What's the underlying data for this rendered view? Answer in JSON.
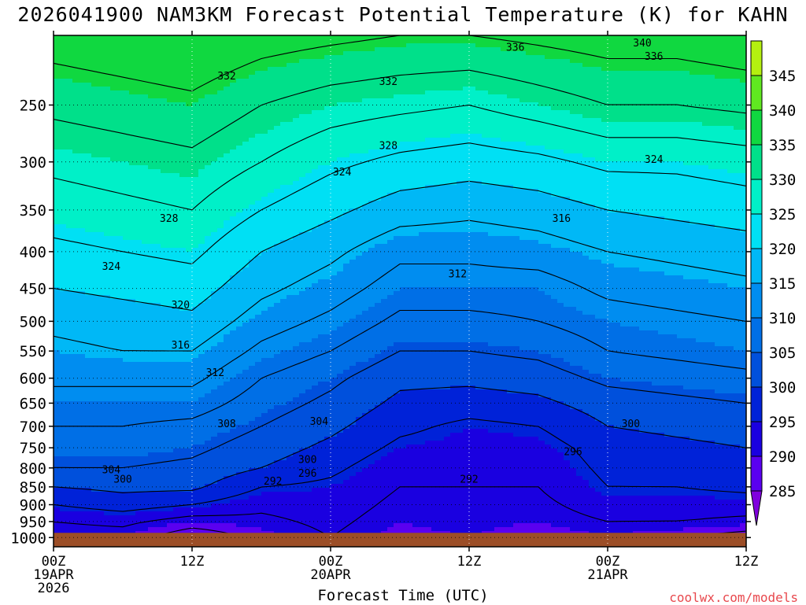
{
  "title": "2026041900 NAM3KM Forecast Potential Temperature (K) for KAHN",
  "xlabel": "Forecast Time (UTC)",
  "credit": "coolwx.com/models",
  "colors": {
    "ground": "#9c4e27",
    "bands": [
      "#8000dd",
      "#5a00f0",
      "#1a00e0",
      "#0022d8",
      "#0050dc",
      "#006fe6",
      "#008df0",
      "#00b8f6",
      "#00e0f4",
      "#00f0c8",
      "#00e08a",
      "#10d840",
      "#60e820",
      "#b4f010",
      "#f0f000"
    ]
  },
  "chart_data": {
    "type": "heatmap",
    "title": "2026041900 NAM3KM Forecast Potential Temperature (K) for KAHN",
    "xlabel": "Forecast Time (UTC)",
    "ylabel": "",
    "x_ticks": [
      {
        "hour": 0,
        "lines": [
          "00Z",
          "19APR",
          "2026"
        ]
      },
      {
        "hour": 12,
        "lines": [
          "12Z"
        ]
      },
      {
        "hour": 24,
        "lines": [
          "00Z",
          "20APR"
        ]
      },
      {
        "hour": 36,
        "lines": [
          "12Z"
        ]
      },
      {
        "hour": 48,
        "lines": [
          "00Z",
          "21APR"
        ]
      },
      {
        "hour": 60,
        "lines": [
          "12Z"
        ]
      }
    ],
    "xlim": [
      0,
      60
    ],
    "y_ticks": [
      250,
      300,
      350,
      400,
      450,
      500,
      550,
      600,
      650,
      700,
      750,
      800,
      850,
      900,
      950,
      1000
    ],
    "ylim_hpa": [
      1030,
      200
    ],
    "colorbar_levels": [
      285,
      290,
      295,
      300,
      305,
      310,
      315,
      320,
      325,
      330,
      335,
      340,
      345
    ],
    "colorbar_range": [
      280,
      350
    ],
    "profile_hours": [
      0,
      6,
      12,
      18,
      24,
      30,
      36,
      42,
      48,
      54,
      60
    ],
    "profile_pressures": [
      1000,
      950,
      900,
      850,
      800,
      750,
      700,
      650,
      600,
      550,
      500,
      450,
      400,
      350,
      300,
      250,
      200
    ],
    "theta": [
      [
        290,
        292,
        296,
        300,
        304,
        306,
        308,
        310,
        313,
        315,
        317,
        320,
        323,
        326,
        329,
        333,
        338
      ],
      [
        290,
        293,
        298,
        301,
        304,
        306,
        308,
        310,
        313,
        316,
        318,
        321,
        324,
        327,
        330,
        334,
        339
      ],
      [
        285,
        290,
        296,
        301,
        303,
        305,
        307,
        310,
        313,
        316,
        319,
        322,
        325,
        328,
        331,
        335,
        340
      ],
      [
        289,
        291,
        293,
        296,
        300,
        302,
        304,
        306,
        308,
        311,
        314,
        317,
        320,
        324,
        328,
        332,
        338
      ],
      [
        292,
        293,
        294,
        295,
        297,
        299,
        301,
        303,
        305,
        308,
        311,
        314,
        317,
        321,
        325,
        330,
        337
      ],
      [
        289,
        290,
        291,
        292,
        293,
        295,
        297,
        299,
        301,
        304,
        307,
        310,
        313,
        318,
        323,
        329,
        336
      ],
      [
        290,
        291,
        291,
        292,
        293,
        294,
        295,
        298,
        301,
        304,
        307,
        310,
        313,
        317,
        322,
        328,
        336
      ],
      [
        288,
        290,
        291,
        292,
        293,
        294,
        296,
        299,
        302,
        305,
        308,
        310,
        314,
        318,
        323,
        330,
        337
      ],
      [
        290,
        292,
        294,
        296,
        297,
        298,
        300,
        302,
        305,
        308,
        310,
        313,
        316,
        320,
        325,
        332,
        338
      ],
      [
        288,
        292,
        294,
        296,
        298,
        299,
        301,
        303,
        306,
        309,
        311,
        314,
        317,
        321,
        325,
        332,
        338
      ],
      [
        286,
        291,
        294,
        297,
        299,
        300,
        302,
        304,
        307,
        310,
        312,
        315,
        318,
        322,
        326,
        333,
        339
      ]
    ],
    "contour_labels": [
      {
        "text": "336",
        "hour": 40,
        "hpa": 208
      },
      {
        "text": "340",
        "hour": 51,
        "hpa": 205
      },
      {
        "text": "336",
        "hour": 52,
        "hpa": 214
      },
      {
        "text": "332",
        "hour": 15,
        "hpa": 228
      },
      {
        "text": "332",
        "hour": 29,
        "hpa": 232
      },
      {
        "text": "328",
        "hour": 29,
        "hpa": 285
      },
      {
        "text": "324",
        "hour": 52,
        "hpa": 298
      },
      {
        "text": "324",
        "hour": 25,
        "hpa": 310
      },
      {
        "text": "328",
        "hour": 10,
        "hpa": 360
      },
      {
        "text": "316",
        "hour": 44,
        "hpa": 360
      },
      {
        "text": "324",
        "hour": 5,
        "hpa": 420
      },
      {
        "text": "312",
        "hour": 35,
        "hpa": 430
      },
      {
        "text": "320",
        "hour": 11,
        "hpa": 475
      },
      {
        "text": "316",
        "hour": 11,
        "hpa": 540
      },
      {
        "text": "312",
        "hour": 14,
        "hpa": 590
      },
      {
        "text": "308",
        "hour": 15,
        "hpa": 695
      },
      {
        "text": "304",
        "hour": 23,
        "hpa": 690
      },
      {
        "text": "300",
        "hour": 50,
        "hpa": 695
      },
      {
        "text": "296",
        "hour": 45,
        "hpa": 760
      },
      {
        "text": "300",
        "hour": 22,
        "hpa": 780
      },
      {
        "text": "304",
        "hour": 5,
        "hpa": 805
      },
      {
        "text": "300",
        "hour": 6,
        "hpa": 830
      },
      {
        "text": "296",
        "hour": 22,
        "hpa": 815
      },
      {
        "text": "292",
        "hour": 19,
        "hpa": 835
      },
      {
        "text": "292",
        "hour": 36,
        "hpa": 830
      }
    ]
  }
}
